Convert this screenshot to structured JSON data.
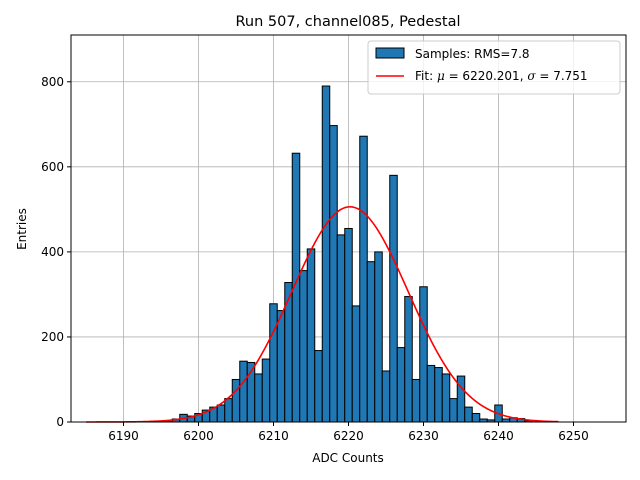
{
  "chart_data": {
    "type": "bar",
    "title": "Run 507, channel085, Pedestal",
    "xlabel": "ADC Counts",
    "ylabel": "Entries",
    "xlim": [
      6183,
      6257
    ],
    "ylim": [
      0,
      910
    ],
    "xticks": [
      6190,
      6200,
      6210,
      6220,
      6230,
      6240,
      6250
    ],
    "yticks": [
      0,
      200,
      400,
      600,
      800
    ],
    "grid": true,
    "legend_position": "top-right",
    "bar_color": "#1f77b4",
    "fit_color": "#ff0000",
    "series": [
      {
        "name": "Samples: RMS=7.8",
        "kind": "histogram",
        "bin_width": 1,
        "x": [
          6196,
          6197,
          6198,
          6199,
          6200,
          6201,
          6202,
          6203,
          6204,
          6205,
          6206,
          6207,
          6208,
          6209,
          6210,
          6211,
          6212,
          6213,
          6214,
          6215,
          6216,
          6217,
          6218,
          6219,
          6220,
          6221,
          6222,
          6223,
          6224,
          6225,
          6226,
          6227,
          6228,
          6229,
          6230,
          6231,
          6232,
          6233,
          6234,
          6235,
          6236,
          6237,
          6238,
          6239,
          6240,
          6241,
          6242,
          6243,
          6244
        ],
        "values": [
          2,
          7,
          18,
          14,
          20,
          28,
          35,
          40,
          55,
          100,
          143,
          140,
          113,
          148,
          278,
          262,
          328,
          632,
          356,
          407,
          168,
          790,
          697,
          440,
          455,
          273,
          672,
          377,
          400,
          120,
          580,
          175,
          295,
          100,
          318,
          133,
          128,
          113,
          55,
          108,
          35,
          20,
          7,
          5,
          40,
          7,
          10,
          8,
          3
        ]
      },
      {
        "name": "Fit: $\\mu$ = 6220.201, $\\sigma$ = 7.751",
        "kind": "gaussian",
        "mu": 6220.201,
        "sigma": 7.751,
        "amplitude": 506,
        "x_range": [
          6185,
          6248
        ]
      }
    ]
  }
}
